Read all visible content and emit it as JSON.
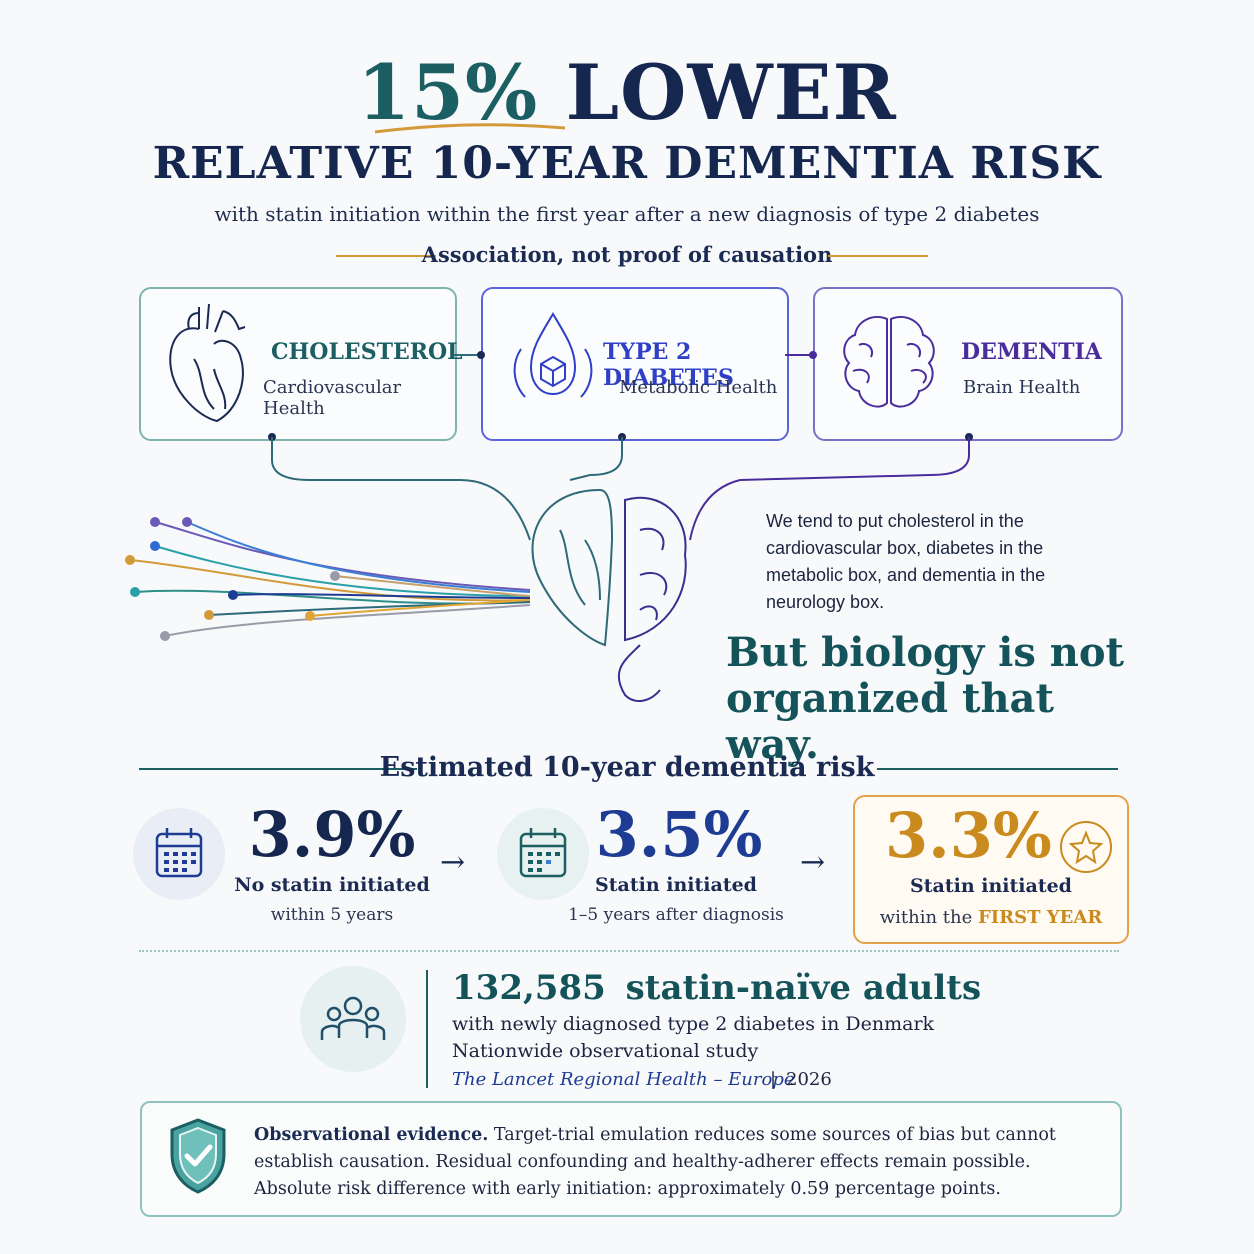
{
  "header": {
    "headline_pct": "15%",
    "headline_word": "LOWER",
    "subhead": "RELATIVE 10-YEAR DEMENTIA RISK",
    "tagline": "with statin initiation within the first year after a new diagnosis of type 2 diabetes",
    "caveat": "Association, not proof of causation"
  },
  "boxes": [
    {
      "title": "CHOLESTEROL",
      "subtitle": "Cardiovascular Health",
      "icon": "heart-icon",
      "color": "#2e7d7a"
    },
    {
      "title": "TYPE 2 DIABETES",
      "subtitle": "Metabolic Health",
      "icon": "drop-cube-icon",
      "color": "#2f3fc7"
    },
    {
      "title": "DEMENTIA",
      "subtitle": "Brain Health",
      "icon": "brain-icon",
      "color": "#4a2c9c"
    }
  ],
  "narrative": {
    "text": "We tend to put cholesterol in the cardiovascular box, diabetes in the metabolic box, and dementia in the neurology box.",
    "punch_line1": "But biology is not",
    "punch_line2": "organized that way."
  },
  "risk": {
    "title": "Estimated 10-year dementia risk",
    "items": [
      {
        "value": "3.9%",
        "label": "No statin initiated",
        "detail": "within 5 years",
        "color": "#15264f"
      },
      {
        "value": "3.5%",
        "label": "Statin initiated",
        "detail": "1–5 years after diagnosis",
        "color": "#1f3c94"
      },
      {
        "value": "3.3%",
        "label": "Statin initiated",
        "detail_prefix": "within the ",
        "detail_emph": "FIRST YEAR",
        "color": "#c98a1e"
      }
    ]
  },
  "cohort": {
    "count": "132,585",
    "count_label": "statin-naïve adults",
    "line1": "with newly diagnosed type 2 diabetes in Denmark",
    "line2": "Nationwide observational study",
    "journal": "The Lancet Regional Health – Europe",
    "separator": "|",
    "year": "2026"
  },
  "evidence": {
    "lead": "Observational evidence.",
    "text": "Target-trial emulation reduces some sources of bias but cannot establish causation. Residual confounding and healthy-adherer effects remain possible. Absolute risk difference with early initiation: approximately 0.59 percentage points."
  },
  "colors": {
    "navy": "#15264f",
    "teal": "#15535a",
    "gold": "#d39a3a",
    "blue": "#2f3fc7",
    "purple": "#4a2c9c"
  }
}
